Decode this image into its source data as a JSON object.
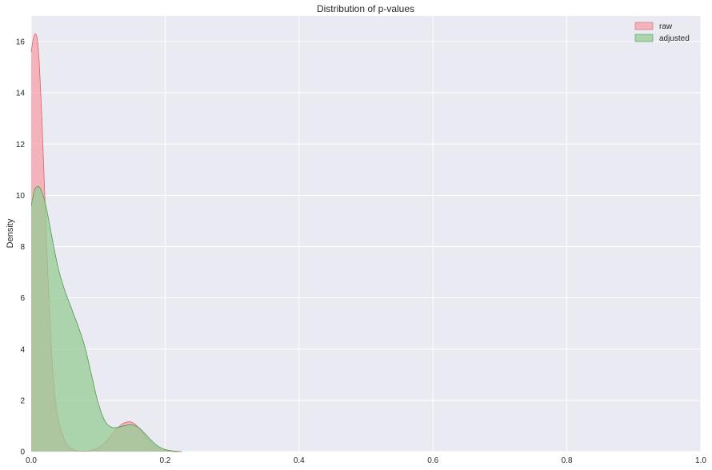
{
  "chart_data": {
    "type": "area",
    "title": "Distribution of p-values",
    "xlabel": "",
    "ylabel": "Density",
    "xlim": [
      0.0,
      1.0
    ],
    "ylim": [
      0,
      17
    ],
    "x_ticks": [
      "0.0",
      "0.2",
      "0.4",
      "0.6",
      "0.8",
      "1.0"
    ],
    "y_ticks": [
      "0",
      "2",
      "4",
      "6",
      "8",
      "10",
      "12",
      "14",
      "16"
    ],
    "grid": true,
    "legend_position": "top-right",
    "series": [
      {
        "name": "raw",
        "fill": "#f4a0a8",
        "stroke": "#e0606a",
        "x": [
          0.0,
          0.003,
          0.006,
          0.009,
          0.012,
          0.016,
          0.02,
          0.025,
          0.03,
          0.035,
          0.04,
          0.05,
          0.06,
          0.07,
          0.08,
          0.09,
          0.1,
          0.11,
          0.12,
          0.13,
          0.14,
          0.15,
          0.16,
          0.17,
          0.18,
          0.19,
          0.2,
          0.21,
          0.22
        ],
        "y": [
          15.6,
          16.1,
          16.3,
          16.1,
          15.2,
          13.0,
          10.2,
          6.8,
          4.1,
          2.3,
          1.3,
          0.45,
          0.12,
          0.03,
          0.01,
          0.05,
          0.15,
          0.35,
          0.65,
          0.95,
          1.13,
          1.15,
          0.95,
          0.62,
          0.32,
          0.12,
          0.04,
          0.01,
          0.0
        ]
      },
      {
        "name": "adjusted",
        "fill": "#96cc96",
        "stroke": "#4e9a4e",
        "x": [
          0.0,
          0.005,
          0.01,
          0.015,
          0.02,
          0.025,
          0.03,
          0.04,
          0.05,
          0.06,
          0.07,
          0.08,
          0.09,
          0.1,
          0.11,
          0.12,
          0.13,
          0.14,
          0.15,
          0.16,
          0.17,
          0.18,
          0.19,
          0.2,
          0.21,
          0.22,
          0.225
        ],
        "y": [
          9.6,
          10.2,
          10.35,
          10.2,
          9.8,
          9.2,
          8.5,
          7.2,
          6.3,
          5.6,
          4.9,
          4.1,
          3.0,
          1.9,
          1.2,
          0.95,
          0.95,
          1.02,
          1.05,
          0.95,
          0.7,
          0.42,
          0.2,
          0.08,
          0.03,
          0.01,
          0.0
        ]
      }
    ]
  }
}
